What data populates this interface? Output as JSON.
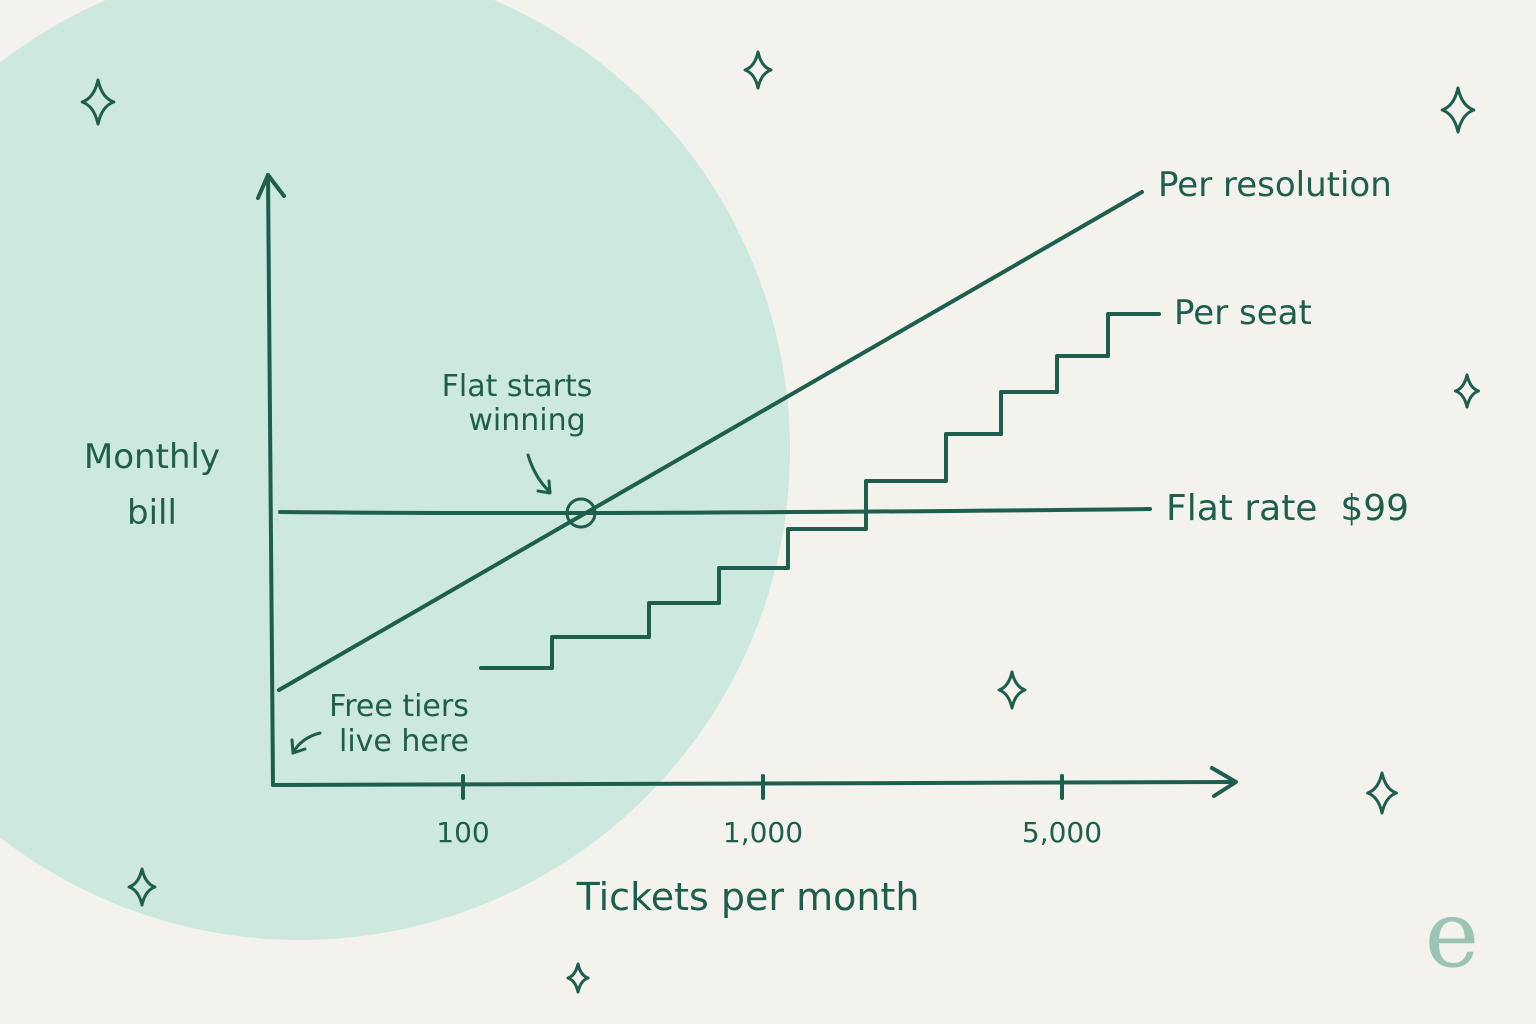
{
  "colors": {
    "background": "#f4f2ec",
    "blob": "#cde8df",
    "ink": "#1d5e4d",
    "logo": "#9cc4b5"
  },
  "logo": {
    "glyph": "e",
    "icon": "brand-e-logo"
  },
  "chart_data": {
    "type": "line",
    "title": "",
    "xlabel": "Tickets per month",
    "ylabel": "Monthly bill",
    "x_ticks": [
      "100",
      "1,000",
      "5,000"
    ],
    "x_scale": "log",
    "axis_values": "unlabeled",
    "grid": false,
    "legend": "labels at line ends",
    "series": [
      {
        "name": "Per resolution",
        "shape": "linear-increasing"
      },
      {
        "name": "Per seat",
        "shape": "stepped-increasing"
      },
      {
        "name": "Flat rate  $99",
        "shape": "constant"
      }
    ],
    "annotations": [
      {
        "id": "crossover",
        "text": [
          "Flat starts",
          "winning"
        ]
      },
      {
        "id": "free",
        "text": [
          "Free tiers",
          "live here"
        ]
      }
    ]
  }
}
